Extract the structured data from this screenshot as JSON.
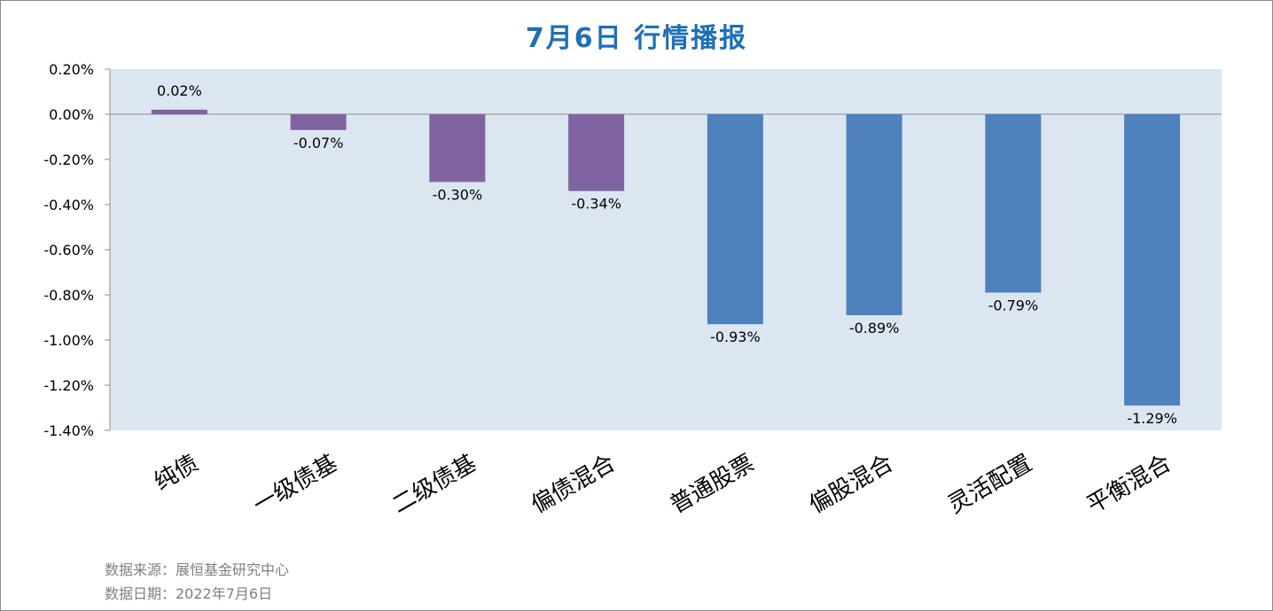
{
  "title": "7月6日  行情播报",
  "footer": {
    "source": "数据来源：展恒基金研究中心",
    "date": "数据日期：2022年7月6日"
  },
  "chart_data": {
    "type": "bar",
    "title": "7月6日  行情播报",
    "xlabel": "",
    "ylabel": "",
    "ylim": [
      -1.4,
      0.2
    ],
    "yticks": [
      0.2,
      0.0,
      -0.2,
      -0.4,
      -0.6,
      -0.8,
      -1.0,
      -1.2,
      -1.4
    ],
    "ytick_labels": [
      "0.20%",
      "0.00%",
      "-0.20%",
      "-0.40%",
      "-0.60%",
      "-0.80%",
      "-1.00%",
      "-1.20%",
      "-1.40%"
    ],
    "categories": [
      "纯债",
      "一级债基",
      "二级债基",
      "偏债混合",
      "普通股票",
      "偏股混合",
      "灵活配置",
      "平衡混合"
    ],
    "values": [
      0.02,
      -0.07,
      -0.3,
      -0.34,
      -0.93,
      -0.89,
      -0.79,
      -1.29
    ],
    "data_labels": [
      "0.02%",
      "-0.07%",
      "-0.30%",
      "-0.34%",
      "-0.93%",
      "-0.89%",
      "-0.79%",
      "-1.29%"
    ],
    "bar_colors": [
      "#8064a2",
      "#8064a2",
      "#8064a2",
      "#8064a2",
      "#4f81bd",
      "#4f81bd",
      "#4f81bd",
      "#4f81bd"
    ],
    "plot_background": "#dce6f1",
    "grid": false,
    "legend": "none"
  }
}
